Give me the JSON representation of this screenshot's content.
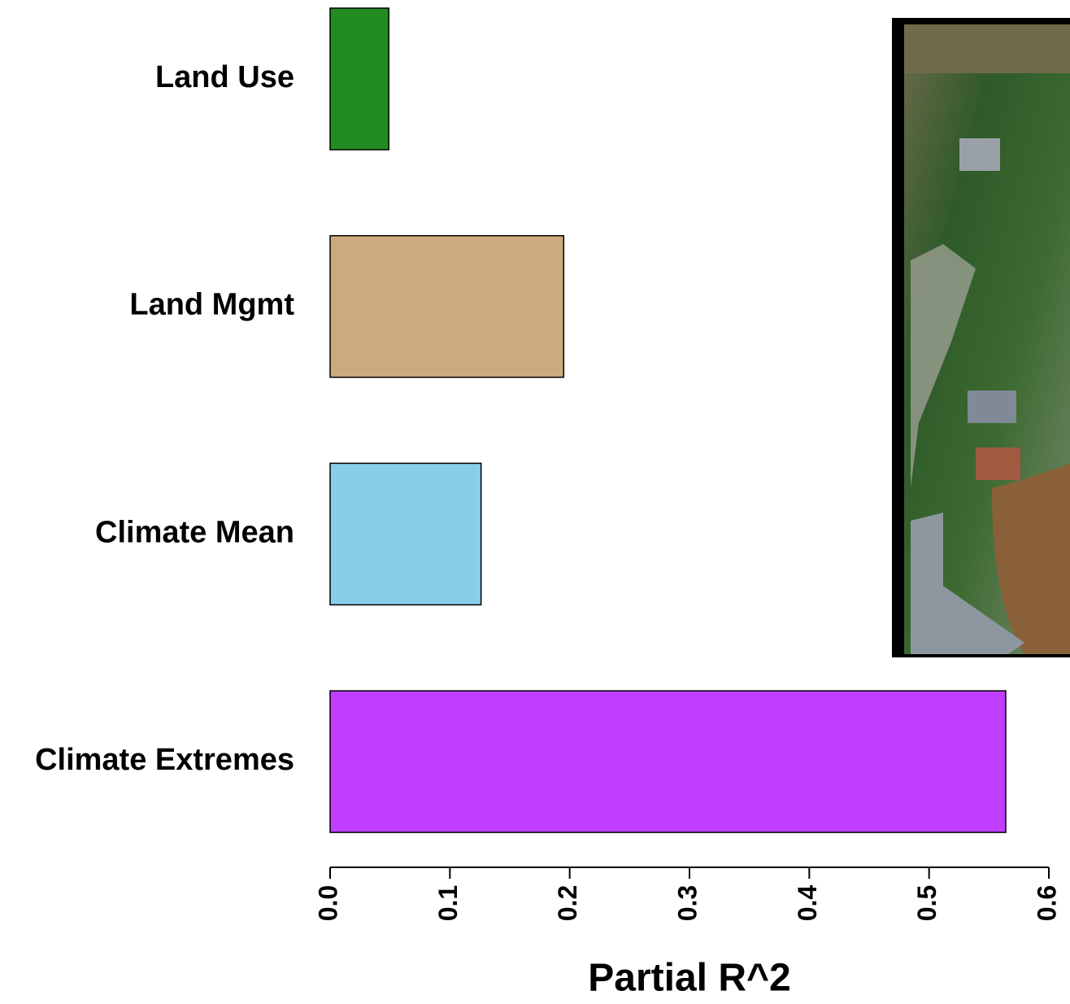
{
  "chart_data": {
    "type": "bar",
    "orientation": "horizontal",
    "categories": [
      "Land Use",
      "Land Mgmt",
      "Climate Mean",
      "Climate Extremes"
    ],
    "values": [
      0.049,
      0.195,
      0.126,
      0.564
    ],
    "colors": [
      "#228b22",
      "#cdaa7d",
      "#87ceeb",
      "#bf3eff"
    ],
    "xlabel": "Partial R^2",
    "xlim": [
      0,
      0.6
    ],
    "xticks": [
      {
        "value": 0,
        "label": "0.0"
      },
      0.1,
      0.2,
      0.3,
      0.4,
      0.5,
      0.6
    ]
  }
}
